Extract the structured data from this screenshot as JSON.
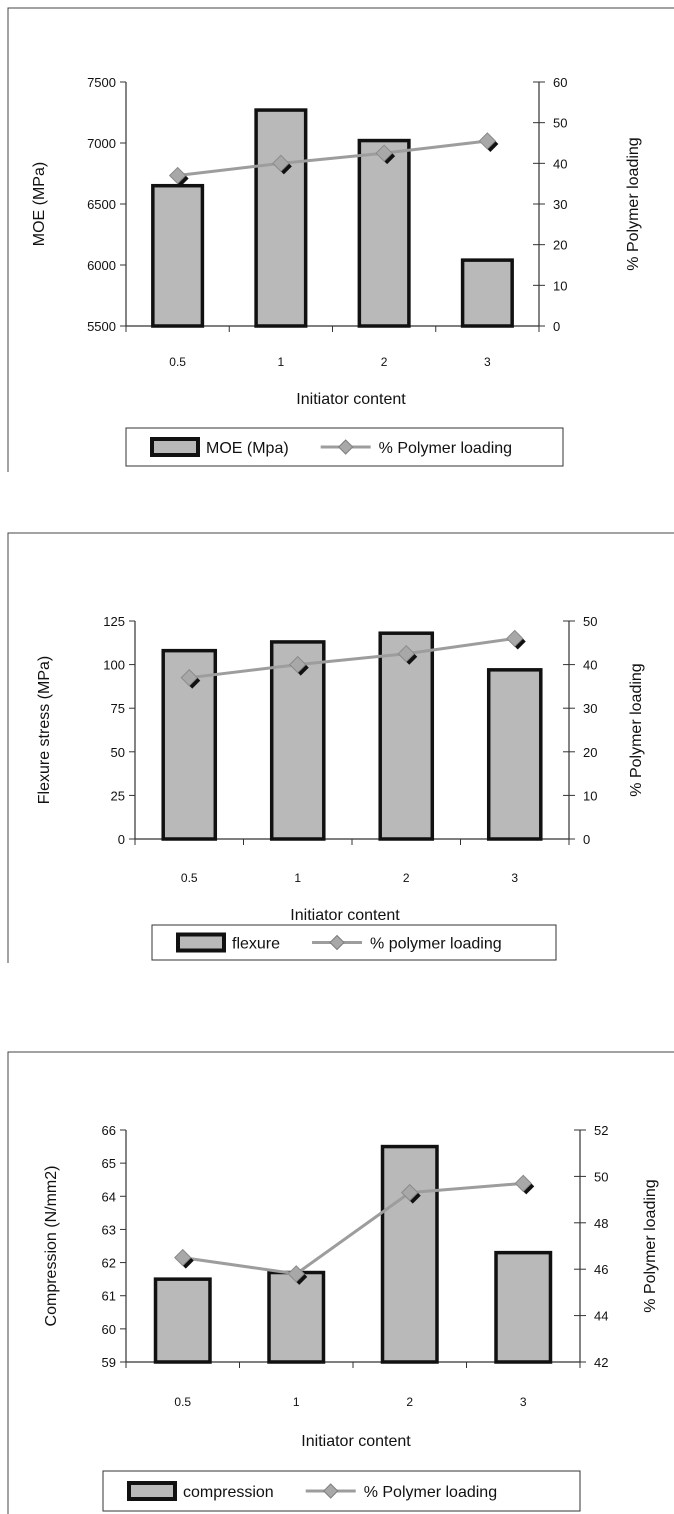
{
  "chart_data": [
    {
      "type": "bar",
      "categories": [
        "0.5",
        "1",
        "2",
        "3"
      ],
      "series": [
        {
          "name": "MOE (Mpa)",
          "type": "bar",
          "axis": "left",
          "values": [
            6650,
            7270,
            7020,
            6040
          ]
        },
        {
          "name": "% Polymer loading",
          "type": "line",
          "axis": "right",
          "values": [
            37,
            40,
            42.5,
            45.5
          ]
        }
      ],
      "xlabel": "Initiator content",
      "ylabel": "MOE (MPa)",
      "y2label": "% Polymer loading",
      "ylim": [
        5500,
        7500
      ],
      "y2lim": [
        0,
        60
      ],
      "yticks": [
        "5500",
        "6000",
        "6500",
        "7000",
        "7500"
      ],
      "y2ticks": [
        "0",
        "10",
        "20",
        "30",
        "40",
        "50",
        "60"
      ],
      "grid": false,
      "legend_position": "bottom"
    },
    {
      "type": "bar",
      "categories": [
        "0.5",
        "1",
        "2",
        "3"
      ],
      "series": [
        {
          "name": "flexure",
          "type": "bar",
          "axis": "left",
          "values": [
            108,
            113,
            118,
            97
          ]
        },
        {
          "name": "% polymer loading",
          "type": "line",
          "axis": "right",
          "values": [
            37,
            40,
            42.5,
            46
          ]
        }
      ],
      "xlabel": "Initiator content",
      "ylabel": "Flexure stress (MPa)",
      "y2label": "% Polymer loading",
      "ylim": [
        0,
        125
      ],
      "y2lim": [
        0,
        50
      ],
      "yticks": [
        "0",
        "25",
        "50",
        "75",
        "100",
        "125"
      ],
      "y2ticks": [
        "0",
        "10",
        "20",
        "30",
        "40",
        "50"
      ],
      "grid": false,
      "legend_position": "bottom"
    },
    {
      "type": "bar",
      "categories": [
        "0.5",
        "1",
        "2",
        "3"
      ],
      "series": [
        {
          "name": "compression",
          "type": "bar",
          "axis": "left",
          "values": [
            61.5,
            61.7,
            65.5,
            62.3
          ]
        },
        {
          "name": "% Polymer loading",
          "type": "line",
          "axis": "right",
          "values": [
            46.5,
            45.8,
            49.3,
            49.7
          ]
        }
      ],
      "xlabel": "Initiator content",
      "ylabel": "Compression (N/mm2)",
      "y2label": "% Polymer loading",
      "ylim": [
        59,
        66
      ],
      "y2lim": [
        42,
        52
      ],
      "yticks": [
        "59",
        "60",
        "61",
        "62",
        "63",
        "64",
        "65",
        "66"
      ],
      "y2ticks": [
        "42",
        "44",
        "46",
        "48",
        "50",
        "52"
      ],
      "grid": false,
      "legend_position": "bottom"
    }
  ],
  "colors": {
    "bar_fill": "#b9b9b9",
    "bar_edge": "#111111",
    "line": "#9d9d9d",
    "marker": "#a8a8a8",
    "marker_shadow": "#111111",
    "axis": "#333333"
  }
}
